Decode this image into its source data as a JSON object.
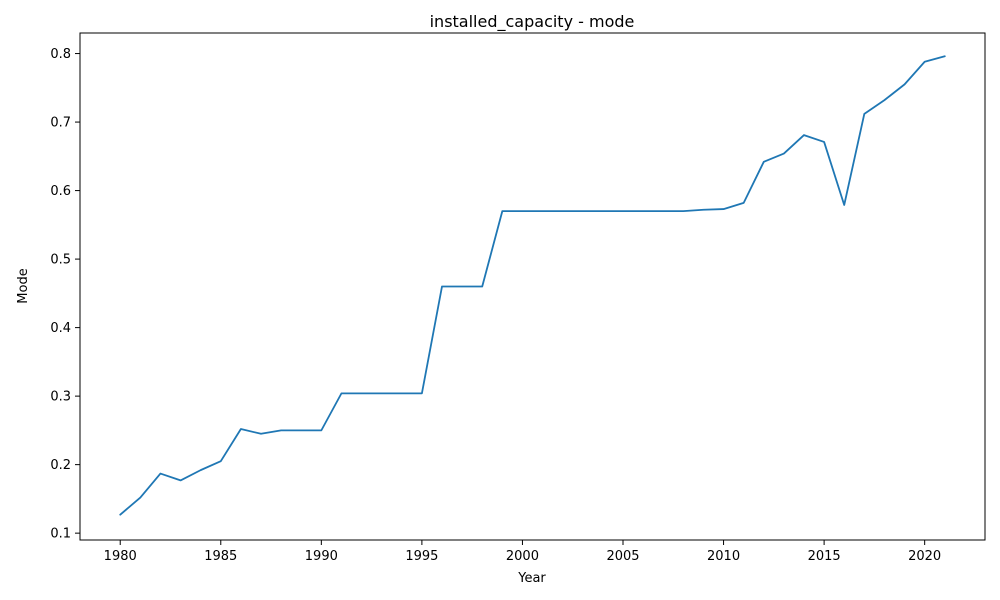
{
  "chart_data": {
    "type": "line",
    "title": "installed_capacity - mode",
    "xlabel": "Year",
    "ylabel": "Mode",
    "xlim": [
      1978,
      2023
    ],
    "ylim": [
      0.09,
      0.83
    ],
    "x_ticks": [
      1980,
      1985,
      1990,
      1995,
      2000,
      2005,
      2010,
      2015,
      2020
    ],
    "y_ticks": [
      0.1,
      0.2,
      0.3,
      0.4,
      0.5,
      0.6,
      0.7,
      0.8
    ],
    "y_tick_labels": [
      "0.1",
      "0.2",
      "0.3",
      "0.4",
      "0.5",
      "0.6",
      "0.7",
      "0.8"
    ],
    "grid": false,
    "series": [
      {
        "color": "#1f77b4",
        "x": [
          1980,
          1981,
          1982,
          1983,
          1984,
          1985,
          1986,
          1987,
          1988,
          1989,
          1990,
          1991,
          1992,
          1993,
          1994,
          1995,
          1996,
          1997,
          1998,
          1999,
          2000,
          2001,
          2002,
          2003,
          2004,
          2005,
          2006,
          2007,
          2008,
          2009,
          2010,
          2011,
          2012,
          2013,
          2014,
          2015,
          2016,
          2017,
          2018,
          2019,
          2020,
          2021
        ],
        "y": [
          0.127,
          0.152,
          0.187,
          0.177,
          0.192,
          0.205,
          0.252,
          0.245,
          0.25,
          0.25,
          0.25,
          0.304,
          0.304,
          0.304,
          0.304,
          0.304,
          0.46,
          0.46,
          0.46,
          0.57,
          0.57,
          0.57,
          0.57,
          0.57,
          0.57,
          0.57,
          0.57,
          0.57,
          0.57,
          0.572,
          0.573,
          0.582,
          0.642,
          0.654,
          0.681,
          0.671,
          0.579,
          0.712,
          0.732,
          0.755,
          0.788,
          0.796
        ]
      }
    ]
  }
}
